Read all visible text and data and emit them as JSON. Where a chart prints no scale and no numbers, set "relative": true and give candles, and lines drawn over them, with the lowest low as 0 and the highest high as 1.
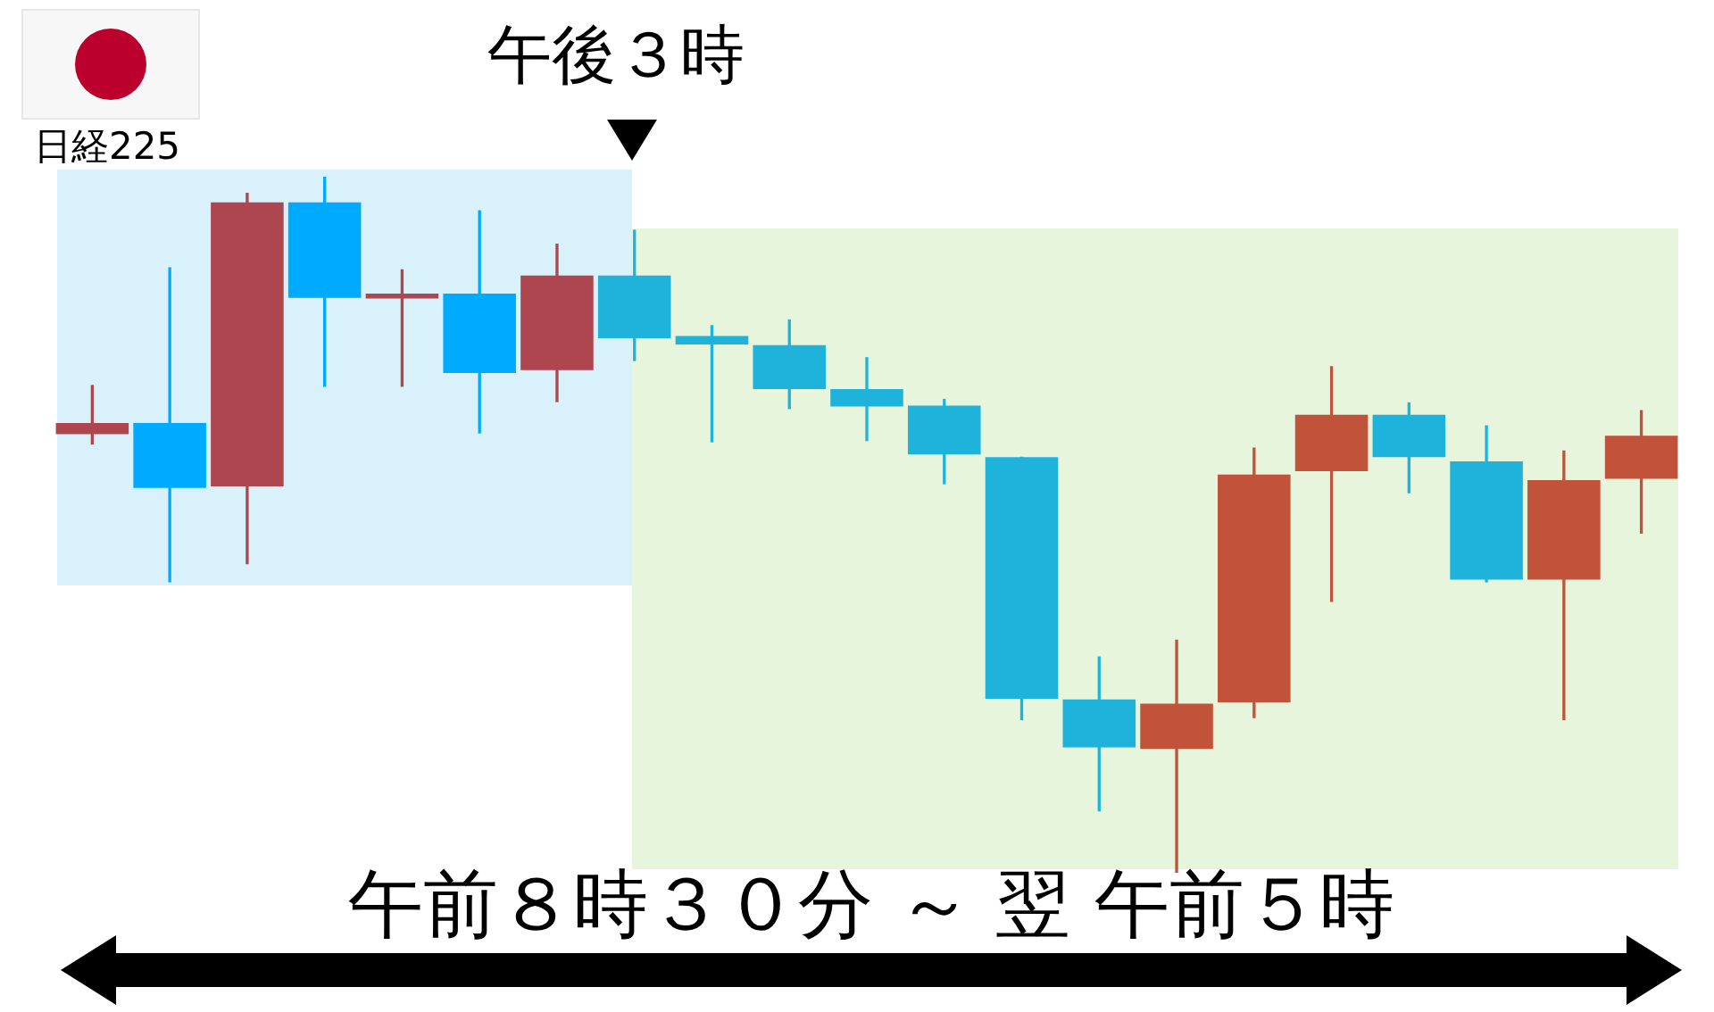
{
  "chart_data": {
    "type": "candlestick",
    "relative": true,
    "categories": [
      null,
      null,
      null,
      null,
      null,
      null,
      null,
      null,
      null,
      null,
      null,
      null,
      null,
      null,
      null,
      null,
      null,
      null,
      null,
      null,
      null
    ],
    "ohlc": [
      [
        0.63,
        0.7,
        0.616,
        0.646
      ],
      [
        0.646,
        0.869,
        0.418,
        0.553
      ],
      [
        0.555,
        0.976,
        0.444,
        0.963
      ],
      [
        0.963,
        1,
        0.699,
        0.826
      ],
      [
        0.825,
        0.866,
        0.699,
        0.832
      ],
      [
        0.832,
        0.951,
        0.632,
        0.718
      ],
      [
        0.722,
        0.903,
        0.677,
        0.858
      ],
      [
        0.858,
        0.923,
        0.736,
        0.768
      ],
      [
        0.771,
        0.786,
        0.619,
        0.759
      ],
      [
        0.758,
        0.794,
        0.667,
        0.695
      ],
      [
        0.695,
        0.74,
        0.621,
        0.67
      ],
      [
        0.671,
        0.68,
        0.559,
        0.601
      ],
      [
        0.597,
        0.597,
        0.22,
        0.25
      ],
      [
        0.249,
        0.31,
        0.089,
        0.18
      ],
      [
        0.178,
        0.334,
        0,
        0.243
      ],
      [
        0.245,
        0.61,
        0.223,
        0.572
      ],
      [
        0.577,
        0.727,
        0.39,
        0.658
      ],
      [
        0.658,
        0.675,
        0.546,
        0.597
      ],
      [
        0.591,
        0.642,
        0.418,
        0.421
      ],
      [
        0.421,
        0.606,
        0.22,
        0.564
      ],
      [
        0.566,
        0.664,
        0.488,
        0.628
      ]
    ],
    "colors": [
      "#ad464f",
      "#00aaff",
      "#ad464f",
      "#00aaff",
      "#ad464f",
      "#00aaff",
      "#ad464f",
      "#1fb3db",
      "#1fb3db",
      "#1fb3db",
      "#1fb3db",
      "#1fb3db",
      "#1fb3db",
      "#1fb3db",
      "#c0533a",
      "#c0533a",
      "#c0533a",
      "#1fb3db",
      "#1fb3db",
      "#c0533a",
      "#c0533a"
    ],
    "annotations": [
      "日経225",
      "午後３時",
      "午前８時３０分 ～ 翌 午前５時"
    ]
  }
}
